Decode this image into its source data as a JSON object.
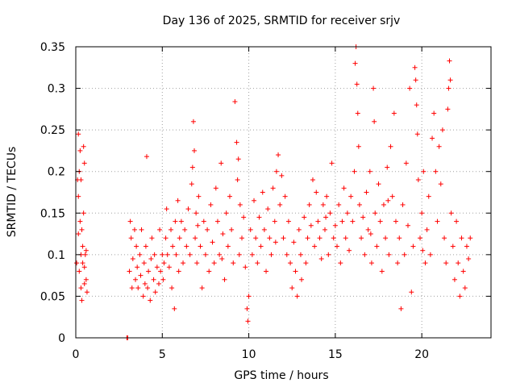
{
  "chart_data": {
    "type": "scatter",
    "title": "Day 136 of 2025, SRMTID for receiver srjv",
    "xlabel": "GPS time / hours",
    "ylabel": "SRMTID / TECUs",
    "xlim": [
      0,
      24
    ],
    "ylim": [
      0,
      0.35
    ],
    "x_ticks": [
      "0",
      "5",
      "10",
      "15",
      "20"
    ],
    "y_ticks": [
      "0",
      "0.05",
      "0.1",
      "0.15",
      "0.2",
      "0.25",
      "0.3",
      "0.35"
    ],
    "grid": true,
    "marker": "+",
    "color": "#ff0000",
    "series": [
      {
        "points": [
          [
            0.05,
            0.09
          ],
          [
            0.1,
            0.19
          ],
          [
            0.15,
            0.245
          ],
          [
            0.15,
            0.17
          ],
          [
            0.2,
            0.2
          ],
          [
            0.2,
            0.08
          ],
          [
            0.25,
            0.14
          ],
          [
            0.25,
            0.225
          ],
          [
            0.3,
            0.1
          ],
          [
            0.3,
            0.06
          ],
          [
            0.35,
            0.13
          ],
          [
            0.35,
            0.045
          ],
          [
            0.4,
            0.09
          ],
          [
            0.4,
            0.11
          ],
          [
            0.45,
            0.23
          ],
          [
            0.45,
            0.15
          ],
          [
            0.5,
            0.085
          ],
          [
            0.5,
            0.065
          ],
          [
            0.55,
            0.1
          ],
          [
            0.6,
            0.07
          ],
          [
            0.6,
            0.105
          ],
          [
            0.65,
            0.055
          ],
          [
            0.3,
            0.19
          ],
          [
            0.15,
            0.125
          ],
          [
            0.5,
            0.21
          ],
          [
            2.95,
            0.0
          ],
          [
            3.0,
            0.0
          ],
          [
            3.1,
            0.08
          ],
          [
            3.15,
            0.14
          ],
          [
            3.2,
            0.12
          ],
          [
            3.25,
            0.06
          ],
          [
            3.3,
            0.095
          ],
          [
            3.4,
            0.13
          ],
          [
            3.45,
            0.07
          ],
          [
            3.5,
            0.11
          ],
          [
            3.55,
            0.085
          ],
          [
            3.6,
            0.06
          ],
          [
            3.7,
            0.1
          ],
          [
            3.75,
            0.075
          ],
          [
            3.8,
            0.13
          ],
          [
            3.9,
            0.05
          ],
          [
            3.95,
            0.09
          ],
          [
            4.0,
            0.065
          ],
          [
            4.05,
            0.11
          ],
          [
            4.1,
            0.218
          ],
          [
            4.15,
            0.06
          ],
          [
            4.2,
            0.08
          ],
          [
            4.3,
            0.045
          ],
          [
            4.35,
            0.095
          ],
          [
            4.4,
            0.12
          ],
          [
            4.5,
            0.07
          ],
          [
            4.55,
            0.1
          ],
          [
            4.6,
            0.055
          ],
          [
            4.7,
            0.085
          ],
          [
            4.8,
            0.065
          ],
          [
            4.85,
            0.13
          ],
          [
            4.9,
            0.08
          ],
          [
            5.0,
            0.1
          ],
          [
            5.05,
            0.07
          ],
          [
            5.1,
            0.09
          ],
          [
            5.2,
            0.12
          ],
          [
            5.25,
            0.155
          ],
          [
            5.3,
            0.1
          ],
          [
            5.4,
            0.085
          ],
          [
            5.5,
            0.13
          ],
          [
            5.55,
            0.06
          ],
          [
            5.6,
            0.11
          ],
          [
            5.7,
            0.035
          ],
          [
            5.75,
            0.14
          ],
          [
            5.8,
            0.1
          ],
          [
            5.9,
            0.165
          ],
          [
            5.95,
            0.08
          ],
          [
            6.0,
            0.12
          ],
          [
            6.1,
            0.14
          ],
          [
            6.2,
            0.09
          ],
          [
            6.3,
            0.13
          ],
          [
            6.4,
            0.11
          ],
          [
            6.5,
            0.155
          ],
          [
            6.6,
            0.1
          ],
          [
            6.7,
            0.185
          ],
          [
            6.75,
            0.205
          ],
          [
            6.8,
            0.26
          ],
          [
            6.85,
            0.225
          ],
          [
            6.9,
            0.12
          ],
          [
            6.95,
            0.15
          ],
          [
            7.0,
            0.09
          ],
          [
            7.1,
            0.17
          ],
          [
            7.2,
            0.11
          ],
          [
            7.3,
            0.06
          ],
          [
            7.4,
            0.14
          ],
          [
            7.5,
            0.1
          ],
          [
            7.6,
            0.13
          ],
          [
            7.7,
            0.08
          ],
          [
            7.8,
            0.16
          ],
          [
            7.9,
            0.115
          ],
          [
            8.0,
            0.09
          ],
          [
            8.1,
            0.18
          ],
          [
            8.2,
            0.14
          ],
          [
            8.3,
            0.1
          ],
          [
            8.4,
            0.21
          ],
          [
            8.5,
            0.125
          ],
          [
            8.6,
            0.07
          ],
          [
            8.7,
            0.15
          ],
          [
            8.8,
            0.11
          ],
          [
            8.9,
            0.17
          ],
          [
            9.0,
            0.13
          ],
          [
            9.1,
            0.09
          ],
          [
            9.2,
            0.284
          ],
          [
            9.3,
            0.235
          ],
          [
            9.35,
            0.19
          ],
          [
            9.4,
            0.215
          ],
          [
            9.45,
            0.1
          ],
          [
            9.5,
            0.16
          ],
          [
            9.6,
            0.12
          ],
          [
            9.7,
            0.145
          ],
          [
            9.8,
            0.085
          ],
          [
            9.9,
            0.035
          ],
          [
            9.95,
            0.02
          ],
          [
            10.0,
            0.05
          ],
          [
            10.1,
            0.13
          ],
          [
            10.2,
            0.1
          ],
          [
            10.3,
            0.165
          ],
          [
            10.4,
            0.12
          ],
          [
            10.5,
            0.09
          ],
          [
            10.6,
            0.145
          ],
          [
            10.7,
            0.11
          ],
          [
            10.8,
            0.175
          ],
          [
            10.9,
            0.13
          ],
          [
            11.0,
            0.08
          ],
          [
            11.1,
            0.155
          ],
          [
            11.2,
            0.12
          ],
          [
            11.3,
            0.1
          ],
          [
            11.4,
            0.18
          ],
          [
            11.5,
            0.14
          ],
          [
            11.6,
            0.2
          ],
          [
            11.7,
            0.22
          ],
          [
            11.8,
            0.16
          ],
          [
            11.9,
            0.195
          ],
          [
            12.0,
            0.12
          ],
          [
            12.1,
            0.17
          ],
          [
            12.2,
            0.1
          ],
          [
            12.3,
            0.14
          ],
          [
            12.4,
            0.09
          ],
          [
            12.5,
            0.06
          ],
          [
            12.6,
            0.115
          ],
          [
            12.7,
            0.08
          ],
          [
            12.8,
            0.05
          ],
          [
            12.9,
            0.13
          ],
          [
            13.0,
            0.1
          ],
          [
            13.2,
            0.145
          ],
          [
            13.3,
            0.09
          ],
          [
            13.4,
            0.12
          ],
          [
            13.5,
            0.16
          ],
          [
            13.6,
            0.135
          ],
          [
            13.7,
            0.19
          ],
          [
            13.8,
            0.11
          ],
          [
            13.9,
            0.175
          ],
          [
            14.0,
            0.14
          ],
          [
            14.1,
            0.12
          ],
          [
            14.2,
            0.095
          ],
          [
            14.3,
            0.16
          ],
          [
            14.4,
            0.13
          ],
          [
            14.5,
            0.17
          ],
          [
            14.6,
            0.1
          ],
          [
            14.7,
            0.15
          ],
          [
            14.8,
            0.21
          ],
          [
            14.9,
            0.12
          ],
          [
            15.0,
            0.135
          ],
          [
            15.1,
            0.11
          ],
          [
            15.2,
            0.16
          ],
          [
            15.3,
            0.09
          ],
          [
            15.4,
            0.14
          ],
          [
            15.5,
            0.18
          ],
          [
            15.6,
            0.12
          ],
          [
            15.7,
            0.15
          ],
          [
            15.8,
            0.105
          ],
          [
            15.9,
            0.17
          ],
          [
            16.0,
            0.14
          ],
          [
            16.1,
            0.2
          ],
          [
            16.15,
            0.33
          ],
          [
            16.2,
            0.35
          ],
          [
            16.25,
            0.305
          ],
          [
            16.3,
            0.27
          ],
          [
            16.35,
            0.23
          ],
          [
            16.4,
            0.16
          ],
          [
            16.5,
            0.12
          ],
          [
            16.6,
            0.145
          ],
          [
            16.7,
            0.1
          ],
          [
            16.8,
            0.175
          ],
          [
            16.9,
            0.13
          ],
          [
            17.0,
            0.2
          ],
          [
            17.1,
            0.09
          ],
          [
            17.2,
            0.3
          ],
          [
            17.25,
            0.26
          ],
          [
            17.3,
            0.15
          ],
          [
            17.4,
            0.11
          ],
          [
            17.5,
            0.185
          ],
          [
            17.6,
            0.14
          ],
          [
            17.7,
            0.08
          ],
          [
            17.8,
            0.16
          ],
          [
            17.9,
            0.12
          ],
          [
            18.0,
            0.205
          ],
          [
            18.1,
            0.1
          ],
          [
            18.2,
            0.23
          ],
          [
            18.3,
            0.17
          ],
          [
            18.4,
            0.27
          ],
          [
            18.5,
            0.14
          ],
          [
            18.6,
            0.09
          ],
          [
            18.7,
            0.12
          ],
          [
            18.8,
            0.035
          ],
          [
            18.9,
            0.16
          ],
          [
            19.0,
            0.1
          ],
          [
            19.1,
            0.21
          ],
          [
            19.2,
            0.135
          ],
          [
            19.3,
            0.3
          ],
          [
            19.4,
            0.055
          ],
          [
            19.5,
            0.11
          ],
          [
            19.6,
            0.325
          ],
          [
            19.65,
            0.31
          ],
          [
            19.7,
            0.28
          ],
          [
            19.75,
            0.245
          ],
          [
            19.8,
            0.19
          ],
          [
            19.9,
            0.12
          ],
          [
            20.0,
            0.15
          ],
          [
            20.1,
            0.2
          ],
          [
            20.2,
            0.09
          ],
          [
            20.3,
            0.13
          ],
          [
            20.4,
            0.17
          ],
          [
            20.5,
            0.1
          ],
          [
            20.6,
            0.24
          ],
          [
            20.7,
            0.27
          ],
          [
            20.8,
            0.2
          ],
          [
            20.9,
            0.14
          ],
          [
            21.0,
            0.23
          ],
          [
            21.1,
            0.185
          ],
          [
            21.2,
            0.25
          ],
          [
            21.3,
            0.12
          ],
          [
            21.4,
            0.09
          ],
          [
            21.5,
            0.275
          ],
          [
            21.55,
            0.3
          ],
          [
            21.6,
            0.333
          ],
          [
            21.65,
            0.31
          ],
          [
            21.7,
            0.15
          ],
          [
            21.8,
            0.11
          ],
          [
            21.9,
            0.07
          ],
          [
            22.0,
            0.14
          ],
          [
            22.1,
            0.09
          ],
          [
            22.2,
            0.05
          ],
          [
            22.3,
            0.12
          ],
          [
            22.4,
            0.08
          ],
          [
            22.5,
            0.06
          ],
          [
            22.6,
            0.11
          ],
          [
            22.7,
            0.095
          ],
          [
            22.8,
            0.12
          ],
          [
            7.05,
            0.135
          ],
          [
            8.45,
            0.095
          ],
          [
            11.55,
            0.115
          ],
          [
            13.05,
            0.07
          ],
          [
            14.45,
            0.145
          ],
          [
            17.05,
            0.125
          ],
          [
            18.05,
            0.165
          ],
          [
            20.05,
            0.105
          ]
        ]
      }
    ]
  }
}
